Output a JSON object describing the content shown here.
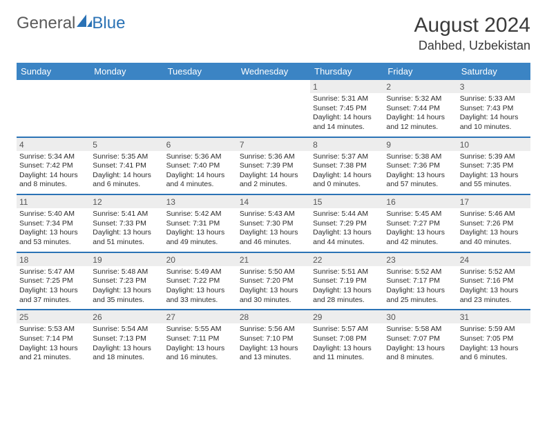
{
  "brand": {
    "part1": "General",
    "part2": "Blue"
  },
  "title": "August 2024",
  "location": "Dahbed, Uzbekistan",
  "colors": {
    "header_bg": "#3b84c4",
    "header_text": "#ffffff",
    "week_divider": "#2a72b5",
    "daynum_bg": "#ededed",
    "text": "#333333",
    "brand_gray": "#5a5a5a",
    "brand_blue": "#2a72b5",
    "page_bg": "#ffffff"
  },
  "typography": {
    "title_fontsize": 30,
    "location_fontsize": 18,
    "daynum_fontsize": 12,
    "content_fontsize": 10.5,
    "header_fontsize": 13
  },
  "day_headers": [
    "Sunday",
    "Monday",
    "Tuesday",
    "Wednesday",
    "Thursday",
    "Friday",
    "Saturday"
  ],
  "weeks": [
    [
      {
        "n": "",
        "sr": "",
        "ss": "",
        "dl": ""
      },
      {
        "n": "",
        "sr": "",
        "ss": "",
        "dl": ""
      },
      {
        "n": "",
        "sr": "",
        "ss": "",
        "dl": ""
      },
      {
        "n": "",
        "sr": "",
        "ss": "",
        "dl": ""
      },
      {
        "n": "1",
        "sr": "Sunrise: 5:31 AM",
        "ss": "Sunset: 7:45 PM",
        "dl": "Daylight: 14 hours and 14 minutes."
      },
      {
        "n": "2",
        "sr": "Sunrise: 5:32 AM",
        "ss": "Sunset: 7:44 PM",
        "dl": "Daylight: 14 hours and 12 minutes."
      },
      {
        "n": "3",
        "sr": "Sunrise: 5:33 AM",
        "ss": "Sunset: 7:43 PM",
        "dl": "Daylight: 14 hours and 10 minutes."
      }
    ],
    [
      {
        "n": "4",
        "sr": "Sunrise: 5:34 AM",
        "ss": "Sunset: 7:42 PM",
        "dl": "Daylight: 14 hours and 8 minutes."
      },
      {
        "n": "5",
        "sr": "Sunrise: 5:35 AM",
        "ss": "Sunset: 7:41 PM",
        "dl": "Daylight: 14 hours and 6 minutes."
      },
      {
        "n": "6",
        "sr": "Sunrise: 5:36 AM",
        "ss": "Sunset: 7:40 PM",
        "dl": "Daylight: 14 hours and 4 minutes."
      },
      {
        "n": "7",
        "sr": "Sunrise: 5:36 AM",
        "ss": "Sunset: 7:39 PM",
        "dl": "Daylight: 14 hours and 2 minutes."
      },
      {
        "n": "8",
        "sr": "Sunrise: 5:37 AM",
        "ss": "Sunset: 7:38 PM",
        "dl": "Daylight: 14 hours and 0 minutes."
      },
      {
        "n": "9",
        "sr": "Sunrise: 5:38 AM",
        "ss": "Sunset: 7:36 PM",
        "dl": "Daylight: 13 hours and 57 minutes."
      },
      {
        "n": "10",
        "sr": "Sunrise: 5:39 AM",
        "ss": "Sunset: 7:35 PM",
        "dl": "Daylight: 13 hours and 55 minutes."
      }
    ],
    [
      {
        "n": "11",
        "sr": "Sunrise: 5:40 AM",
        "ss": "Sunset: 7:34 PM",
        "dl": "Daylight: 13 hours and 53 minutes."
      },
      {
        "n": "12",
        "sr": "Sunrise: 5:41 AM",
        "ss": "Sunset: 7:33 PM",
        "dl": "Daylight: 13 hours and 51 minutes."
      },
      {
        "n": "13",
        "sr": "Sunrise: 5:42 AM",
        "ss": "Sunset: 7:31 PM",
        "dl": "Daylight: 13 hours and 49 minutes."
      },
      {
        "n": "14",
        "sr": "Sunrise: 5:43 AM",
        "ss": "Sunset: 7:30 PM",
        "dl": "Daylight: 13 hours and 46 minutes."
      },
      {
        "n": "15",
        "sr": "Sunrise: 5:44 AM",
        "ss": "Sunset: 7:29 PM",
        "dl": "Daylight: 13 hours and 44 minutes."
      },
      {
        "n": "16",
        "sr": "Sunrise: 5:45 AM",
        "ss": "Sunset: 7:27 PM",
        "dl": "Daylight: 13 hours and 42 minutes."
      },
      {
        "n": "17",
        "sr": "Sunrise: 5:46 AM",
        "ss": "Sunset: 7:26 PM",
        "dl": "Daylight: 13 hours and 40 minutes."
      }
    ],
    [
      {
        "n": "18",
        "sr": "Sunrise: 5:47 AM",
        "ss": "Sunset: 7:25 PM",
        "dl": "Daylight: 13 hours and 37 minutes."
      },
      {
        "n": "19",
        "sr": "Sunrise: 5:48 AM",
        "ss": "Sunset: 7:23 PM",
        "dl": "Daylight: 13 hours and 35 minutes."
      },
      {
        "n": "20",
        "sr": "Sunrise: 5:49 AM",
        "ss": "Sunset: 7:22 PM",
        "dl": "Daylight: 13 hours and 33 minutes."
      },
      {
        "n": "21",
        "sr": "Sunrise: 5:50 AM",
        "ss": "Sunset: 7:20 PM",
        "dl": "Daylight: 13 hours and 30 minutes."
      },
      {
        "n": "22",
        "sr": "Sunrise: 5:51 AM",
        "ss": "Sunset: 7:19 PM",
        "dl": "Daylight: 13 hours and 28 minutes."
      },
      {
        "n": "23",
        "sr": "Sunrise: 5:52 AM",
        "ss": "Sunset: 7:17 PM",
        "dl": "Daylight: 13 hours and 25 minutes."
      },
      {
        "n": "24",
        "sr": "Sunrise: 5:52 AM",
        "ss": "Sunset: 7:16 PM",
        "dl": "Daylight: 13 hours and 23 minutes."
      }
    ],
    [
      {
        "n": "25",
        "sr": "Sunrise: 5:53 AM",
        "ss": "Sunset: 7:14 PM",
        "dl": "Daylight: 13 hours and 21 minutes."
      },
      {
        "n": "26",
        "sr": "Sunrise: 5:54 AM",
        "ss": "Sunset: 7:13 PM",
        "dl": "Daylight: 13 hours and 18 minutes."
      },
      {
        "n": "27",
        "sr": "Sunrise: 5:55 AM",
        "ss": "Sunset: 7:11 PM",
        "dl": "Daylight: 13 hours and 16 minutes."
      },
      {
        "n": "28",
        "sr": "Sunrise: 5:56 AM",
        "ss": "Sunset: 7:10 PM",
        "dl": "Daylight: 13 hours and 13 minutes."
      },
      {
        "n": "29",
        "sr": "Sunrise: 5:57 AM",
        "ss": "Sunset: 7:08 PM",
        "dl": "Daylight: 13 hours and 11 minutes."
      },
      {
        "n": "30",
        "sr": "Sunrise: 5:58 AM",
        "ss": "Sunset: 7:07 PM",
        "dl": "Daylight: 13 hours and 8 minutes."
      },
      {
        "n": "31",
        "sr": "Sunrise: 5:59 AM",
        "ss": "Sunset: 7:05 PM",
        "dl": "Daylight: 13 hours and 6 minutes."
      }
    ]
  ]
}
